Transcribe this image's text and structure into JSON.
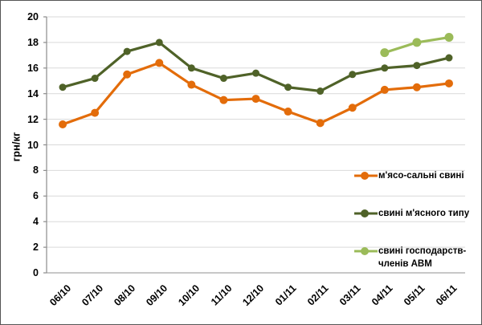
{
  "chart_data": {
    "type": "line",
    "title": "",
    "xlabel": "",
    "ylabel": "грн/кг",
    "ylim": [
      0,
      20
    ],
    "ytick_step": 2,
    "grid": "horizontal",
    "legend_position": "inside-right",
    "categories": [
      "06/10",
      "07/10",
      "08/10",
      "09/10",
      "10/10",
      "11/10",
      "12/10",
      "01/11",
      "02/11",
      "03/11",
      "04/11",
      "05/11",
      "06/11"
    ],
    "series": [
      {
        "name": "м'ясо-сальні свині",
        "color": "#E36C0A",
        "values": [
          11.6,
          12.5,
          15.5,
          16.4,
          14.7,
          13.5,
          13.6,
          12.6,
          11.7,
          12.9,
          14.3,
          14.5,
          14.8
        ]
      },
      {
        "name": "свині м'ясного типу",
        "color": "#4F6228",
        "values": [
          14.5,
          15.2,
          17.3,
          18.0,
          16.0,
          15.2,
          15.6,
          14.5,
          14.2,
          15.5,
          16.0,
          16.2,
          16.8
        ]
      },
      {
        "name": "свині господарств-членів АВМ",
        "color": "#9BBB59",
        "values": [
          null,
          null,
          null,
          null,
          null,
          null,
          null,
          null,
          null,
          null,
          17.2,
          18.0,
          18.4
        ]
      }
    ]
  },
  "colors": {
    "gridline": "#D9D9D9",
    "x_axis": "#A6A6A6",
    "y_axis": "#8C8C8C",
    "background": "#FFFFFF",
    "frame_border": "#555555",
    "text": "#000000"
  }
}
